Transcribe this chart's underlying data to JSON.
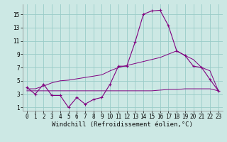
{
  "title": "",
  "xlabel": "Windchill (Refroidissement éolien,°C)",
  "ylabel": "",
  "bg_color": "#cce8e4",
  "grid_color": "#99ccc8",
  "line_color": "#800080",
  "x_values": [
    0,
    1,
    2,
    3,
    4,
    5,
    6,
    7,
    8,
    9,
    10,
    11,
    12,
    13,
    14,
    15,
    16,
    17,
    18,
    19,
    20,
    21,
    22,
    23
  ],
  "line1_y": [
    4.0,
    3.0,
    4.5,
    2.8,
    2.8,
    1.0,
    2.5,
    1.5,
    2.2,
    2.5,
    4.5,
    7.2,
    7.2,
    10.8,
    15.0,
    15.5,
    15.6,
    13.3,
    9.5,
    8.8,
    7.2,
    7.0,
    5.2,
    3.5
  ],
  "line2_y": [
    3.5,
    3.5,
    3.5,
    3.5,
    3.5,
    3.5,
    3.5,
    3.5,
    3.5,
    3.5,
    3.5,
    3.5,
    3.5,
    3.5,
    3.5,
    3.5,
    3.6,
    3.7,
    3.7,
    3.8,
    3.8,
    3.8,
    3.8,
    3.5
  ],
  "line3_y": [
    3.8,
    3.8,
    4.2,
    4.7,
    5.0,
    5.1,
    5.3,
    5.5,
    5.7,
    5.9,
    6.5,
    7.0,
    7.3,
    7.6,
    7.9,
    8.2,
    8.5,
    9.0,
    9.5,
    8.8,
    8.2,
    7.0,
    6.5,
    3.5
  ],
  "yticks": [
    1,
    3,
    5,
    7,
    9,
    11,
    13,
    15
  ],
  "xticks": [
    0,
    1,
    2,
    3,
    4,
    5,
    6,
    7,
    8,
    9,
    10,
    11,
    12,
    13,
    14,
    15,
    16,
    17,
    18,
    19,
    20,
    21,
    22,
    23
  ],
  "ylim": [
    0.5,
    16.5
  ],
  "xlim": [
    -0.5,
    23.5
  ],
  "tick_fontsize": 5.5,
  "xlabel_fontsize": 6.5,
  "figsize": [
    3.2,
    2.0
  ],
  "dpi": 100
}
